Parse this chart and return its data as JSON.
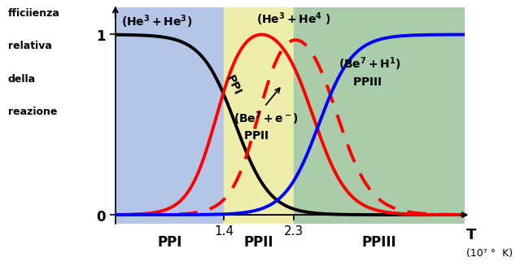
{
  "ylabel_lines": [
    "fficiienza",
    "relativa",
    "della",
    "reazione"
  ],
  "xlabel": "T",
  "xlabel_unit": "(10⁷ °  K)",
  "ylim": [
    -0.05,
    1.15
  ],
  "xlim": [
    0.0,
    4.5
  ],
  "bg_ppi_color": "#b3c6e8",
  "bg_ppii_color": "#eeeeaa",
  "bg_ppiii_color": "#aaccaa",
  "ppi_region": [
    0.0,
    1.4
  ],
  "ppii_region": [
    1.4,
    2.3
  ],
  "ppiii_region": [
    2.3,
    4.5
  ],
  "curve_ppi_color": "black",
  "curve_ppii_solid_color": "red",
  "curve_ppii_dashed_color": "red",
  "curve_ppiii_color": "blue",
  "region_label_ppi": "PPI",
  "region_label_ppii": "PPII",
  "region_label_ppiii": "PPIII",
  "tick_14": "1.4",
  "tick_23": "2.3"
}
